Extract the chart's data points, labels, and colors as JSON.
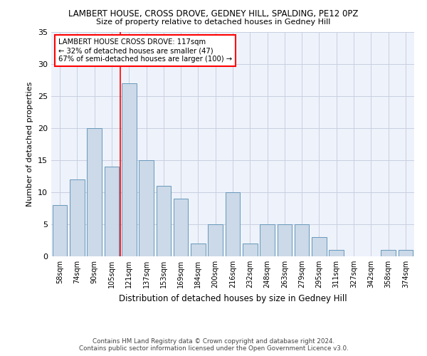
{
  "title": "LAMBERT HOUSE, CROSS DROVE, GEDNEY HILL, SPALDING, PE12 0PZ",
  "subtitle": "Size of property relative to detached houses in Gedney Hill",
  "xlabel": "Distribution of detached houses by size in Gedney Hill",
  "ylabel": "Number of detached properties",
  "categories": [
    "58sqm",
    "74sqm",
    "90sqm",
    "105sqm",
    "121sqm",
    "137sqm",
    "153sqm",
    "169sqm",
    "184sqm",
    "200sqm",
    "216sqm",
    "232sqm",
    "248sqm",
    "263sqm",
    "279sqm",
    "295sqm",
    "311sqm",
    "327sqm",
    "342sqm",
    "358sqm",
    "374sqm"
  ],
  "values": [
    8,
    12,
    20,
    14,
    27,
    15,
    11,
    9,
    2,
    5,
    10,
    2,
    5,
    5,
    5,
    3,
    1,
    0,
    0,
    1,
    1
  ],
  "bar_color": "#ccd9e8",
  "bar_edge_color": "#6699bb",
  "ylim": [
    0,
    35
  ],
  "yticks": [
    0,
    5,
    10,
    15,
    20,
    25,
    30,
    35
  ],
  "red_line_index": 4,
  "annotation_lines": [
    "LAMBERT HOUSE CROSS DROVE: 117sqm",
    "← 32% of detached houses are smaller (47)",
    "67% of semi-detached houses are larger (100) →"
  ],
  "footer_lines": [
    "Contains HM Land Registry data © Crown copyright and database right 2024.",
    "Contains public sector information licensed under the Open Government Licence v3.0."
  ],
  "background_color": "#eef2fb",
  "grid_color": "#c8cfe0"
}
